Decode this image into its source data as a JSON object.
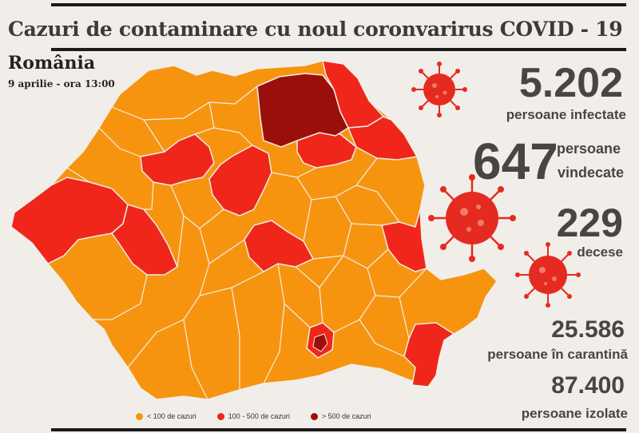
{
  "title": "Cazuri de contaminare cu noul coronvarirus COVID - 19",
  "country": "România",
  "date": "9 aprilie - ora 13:00",
  "stats": {
    "infected": {
      "value": "5.202",
      "label": "persoane infectate"
    },
    "recovered": {
      "value": "647",
      "label_1": "persoane",
      "label_2": "vindecate"
    },
    "deaths": {
      "value": "229",
      "label": "decese"
    },
    "quarantine": {
      "value": "25.586",
      "label": "persoane în carantină"
    },
    "isolated": {
      "value": "87.400",
      "label": "persoane izolate"
    }
  },
  "legend": [
    {
      "label": "< 100 de cazuri",
      "color": "#f7940f"
    },
    {
      "label": "100 - 500 de cazuri",
      "color": "#f0261a"
    },
    {
      "label": "> 500 de cazuri",
      "color": "#9b0f0b"
    }
  ],
  "icons": [
    "virus-icon",
    "virus-icon",
    "virus-icon"
  ]
}
